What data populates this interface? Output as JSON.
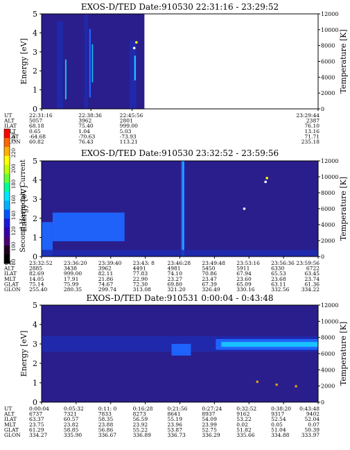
{
  "colors": {
    "bg_fill": "#2a1e8c",
    "bg_band": "#1e2bb0",
    "bright_band": "#1f66ff",
    "cyan": "#19c7ff",
    "white": "#ffffff"
  },
  "colorbar": {
    "label": "Second Harmonic Current",
    "ticks": [
      "240",
      "220",
      "200",
      "180",
      "160",
      "140",
      "120",
      "100",
      "80"
    ],
    "colors": [
      "#ff0000",
      "#ff6600",
      "#ffb000",
      "#ffff00",
      "#c0ff00",
      "#66ff33",
      "#00ff99",
      "#00e5ff",
      "#00b0ff",
      "#0055ff",
      "#1a1adb",
      "#3300aa",
      "#4a0077",
      "#200020",
      "#000000"
    ]
  },
  "chart_data": [
    {
      "type": "heatmap",
      "title": "EXOS-D/TED   Date:910530  22:31:16 - 23:29:52",
      "ylabel": "Energy [eV]",
      "y2label": "Temperature [K]",
      "ylim": [
        0,
        5
      ],
      "y_ticks": [
        "0",
        "1",
        "2",
        "3",
        "4",
        "5"
      ],
      "y2lim": [
        0,
        12000
      ],
      "y2_ticks": [
        "0",
        "2000",
        "4000",
        "6000",
        "8000",
        "10000",
        "12000"
      ],
      "row_labels": [
        "UT",
        "ALT",
        "ILAT",
        "MLT",
        "GLAT",
        "GLON"
      ],
      "columns": [
        {
          "pos": 0.0,
          "values": [
            "22:31:16",
            "5057",
            "68.18",
            "0.65",
            "-64.68",
            "60.82"
          ]
        },
        {
          "pos": 0.1785,
          "values": [
            "22:38:36",
            "3962",
            "75.40",
            "1.04",
            "-70.63",
            "76.43"
          ]
        },
        {
          "pos": 0.3275,
          "values": [
            "22:45:56",
            "2801",
            "999.00",
            "5.03",
            "-73.93",
            "113.21"
          ]
        },
        {
          "pos": 1.0,
          "values": [
            "23:29:44",
            "2387",
            "76.10",
            "13.16",
            "71.71",
            "235.18"
          ]
        }
      ],
      "data_end_fraction": 0.372,
      "bands": [
        {
          "x": 0.055,
          "w": 0.022,
          "y0": 0,
          "y1": 4.6,
          "intensity": "band"
        },
        {
          "x": 0.085,
          "w": 0.005,
          "y0": 0.5,
          "y1": 2.6,
          "intensity": "cyan"
        },
        {
          "x": 0.155,
          "w": 0.012,
          "y0": 0,
          "y1": 5,
          "intensity": "band"
        },
        {
          "x": 0.172,
          "w": 0.006,
          "y0": 0.6,
          "y1": 4.2,
          "intensity": "bright"
        },
        {
          "x": 0.182,
          "w": 0.004,
          "y0": 1.4,
          "y1": 3.4,
          "intensity": "cyan"
        },
        {
          "x": 0.318,
          "w": 0.024,
          "y0": 0,
          "y1": 3.6,
          "intensity": "band"
        },
        {
          "x": 0.335,
          "w": 0.006,
          "y0": 1.5,
          "y1": 2.8,
          "intensity": "cyan"
        }
      ],
      "points": [
        {
          "x": 0.335,
          "y": 3.2,
          "color": "#ffffff"
        },
        {
          "x": 0.343,
          "y": 3.5,
          "color": "#ffff00"
        }
      ]
    },
    {
      "type": "heatmap",
      "title": "EXOS-D/TED   Date:910530  23:32:52 - 23:59:56",
      "ylabel": "Energy [eV]",
      "y2label": "Temperature [K]",
      "ylim": [
        0,
        5
      ],
      "y_ticks": [
        "0",
        "1",
        "2",
        "3",
        "4",
        "5"
      ],
      "y2lim": [
        0,
        12000
      ],
      "y2_ticks": [
        "0",
        "2000",
        "4000",
        "6000",
        "8000",
        "10000",
        "12000"
      ],
      "row_labels": [
        "UT",
        "ALT",
        "ILAT",
        "MLT",
        "GLAT",
        "GLON"
      ],
      "columns": [
        {
          "pos": 0.0,
          "values": [
            "23:32:52",
            "2885",
            "82.69",
            "14.05",
            "75.14",
            "255.40"
          ]
        },
        {
          "pos": 0.1,
          "values": [
            "23:36:20",
            "3438",
            "999.00",
            "17.91",
            "75.99",
            "280.35"
          ]
        },
        {
          "pos": 0.2,
          "values": [
            "23:39:40",
            "3962",
            "82.11",
            "21.86",
            "74.67",
            "299.74"
          ]
        },
        {
          "pos": 0.3,
          "values": [
            "23:43: 8",
            "4491",
            "77.83",
            "22.90",
            "72.30",
            "313.08"
          ]
        },
        {
          "pos": 0.4,
          "values": [
            "23:46:28",
            "4981",
            "74.10",
            "23.27",
            "69.80",
            "321.20"
          ]
        },
        {
          "pos": 0.5,
          "values": [
            "23:49:48",
            "5450",
            "70.86",
            "23.47",
            "67.39",
            "326.49"
          ]
        },
        {
          "pos": 0.6,
          "values": [
            "23:53:16",
            "5911",
            "67.94",
            "23.60",
            "65.09",
            "330.16"
          ]
        },
        {
          "pos": 0.7,
          "values": [
            "23:56:36",
            "6330",
            "65.53",
            "23.68",
            "63.11",
            "332.56"
          ]
        },
        {
          "pos": 0.8,
          "values": [
            "23:59:56",
            "6722",
            "63.45",
            "23.74",
            "61.36",
            "334.22"
          ]
        }
      ],
      "col_scale": 1.25,
      "bands": [
        {
          "x": 0.0,
          "w": 0.04,
          "y0": 0,
          "y1": 1.8,
          "intensity": "bright"
        },
        {
          "x": 0.04,
          "w": 0.26,
          "y0": 0.8,
          "y1": 2.3,
          "intensity": "bright"
        },
        {
          "x": 0.505,
          "w": 0.012,
          "y0": 0,
          "y1": 5,
          "intensity": "bright"
        },
        {
          "x": 0.51,
          "w": 0.004,
          "y0": 0,
          "y1": 5,
          "intensity": "cyan"
        },
        {
          "x": 0.0,
          "w": 1.0,
          "y0": 0,
          "y1": 0.35,
          "intensity": "band"
        }
      ],
      "points": [
        {
          "x": 0.733,
          "y": 2.5,
          "color": "#ffffff"
        },
        {
          "x": 0.81,
          "y": 3.9,
          "color": "#ffffff"
        },
        {
          "x": 0.815,
          "y": 4.1,
          "color": "#ffff00"
        }
      ]
    },
    {
      "type": "heatmap",
      "title": "EXOS-D/TED   Date:910531   0:00:04 -  0:43:48",
      "ylabel": "Energy [eV]",
      "y2label": "Temperature [K]",
      "ylim": [
        0,
        5
      ],
      "y_ticks": [
        "0",
        "1",
        "2",
        "3",
        "4",
        "5"
      ],
      "y2lim": [
        0,
        12000
      ],
      "y2_ticks": [
        "0",
        "2000",
        "4000",
        "6000",
        "8000",
        "10000",
        "12000"
      ],
      "row_labels": [
        "UT",
        "ALT",
        "ILAT",
        "MLT",
        "GLAT",
        "GLON"
      ],
      "columns": [
        {
          "pos": 0.0,
          "values": [
            "0:00:04",
            "6737",
            "63.37",
            "23.75",
            "61.29",
            "334.27"
          ]
        },
        {
          "pos": 0.125,
          "values": [
            "0:05:32",
            "7321",
            "60.57",
            "23.82",
            "58.85",
            "335.90"
          ]
        },
        {
          "pos": 0.25,
          "values": [
            "0:11: 0",
            "7833",
            "58.35",
            "23.88",
            "56.86",
            "336.67"
          ]
        },
        {
          "pos": 0.375,
          "values": [
            "0:16:28",
            "8273",
            "56.59",
            "23.92",
            "55.22",
            "336.89"
          ]
        },
        {
          "pos": 0.5,
          "values": [
            "0:21:56",
            "8641",
            "55.19",
            "23.96",
            "53.87",
            "336.73"
          ]
        },
        {
          "pos": 0.625,
          "values": [
            "0:27:24",
            "8937",
            "54.09",
            "23.99",
            "52.75",
            "336.29"
          ]
        },
        {
          "pos": 0.75,
          "values": [
            "0:32:52",
            "9162",
            "53.22",
            "0.02",
            "51.82",
            "335.66"
          ]
        },
        {
          "pos": 0.875,
          "values": [
            "0:38:20",
            "9317",
            "52.54",
            "0.05",
            "51.04",
            "334.88"
          ]
        },
        {
          "pos": 1.0,
          "values": [
            "0:43:48",
            "9402",
            "52.04",
            "0.07",
            "50.39",
            "333.97"
          ]
        }
      ],
      "bands": [
        {
          "x": 0.0,
          "w": 1.0,
          "y0": 2.6,
          "y1": 3.4,
          "intensity": "band"
        },
        {
          "x": 0.47,
          "w": 0.07,
          "y0": 2.4,
          "y1": 3.0,
          "intensity": "bright"
        },
        {
          "x": 0.63,
          "w": 0.37,
          "y0": 2.7,
          "y1": 3.25,
          "intensity": "bright"
        },
        {
          "x": 0.65,
          "w": 0.35,
          "y0": 2.85,
          "y1": 3.1,
          "intensity": "cyan"
        }
      ],
      "points": [
        {
          "x": 0.78,
          "y": 1.05,
          "color": "#d9a020"
        },
        {
          "x": 0.85,
          "y": 0.9,
          "color": "#d9a020"
        },
        {
          "x": 0.92,
          "y": 0.82,
          "color": "#d9a020"
        }
      ]
    }
  ]
}
